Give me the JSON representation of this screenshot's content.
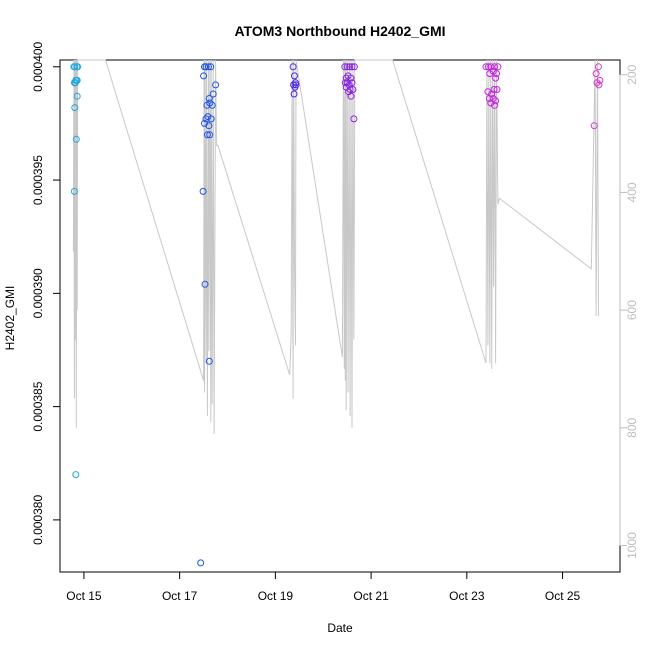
{
  "chart_data": {
    "type": "scatter",
    "title": "ATOM3 Northbound H2402_GMI",
    "xlabel": "Date",
    "ylabel": "H2402_GMI",
    "x_ticks": [
      "Oct 15",
      "Oct 17",
      "Oct 19",
      "Oct 21",
      "Oct 23",
      "Oct 25"
    ],
    "x_tick_values": [
      15,
      17,
      19,
      21,
      23,
      25
    ],
    "xlim": [
      14.5,
      26.2
    ],
    "y_ticks": [
      "0.000380",
      "0.000385",
      "0.000390",
      "0.000395",
      "0.000400"
    ],
    "y_tick_values": [
      0.00038,
      0.000385,
      0.00039,
      0.000395,
      0.0004
    ],
    "ylim": [
      0.0003777,
      0.0004003
    ],
    "y2_ticks": [
      "200",
      "400",
      "600",
      "800",
      "1000"
    ],
    "y2_tick_values": [
      200,
      400,
      600,
      800,
      1000
    ],
    "y2lim": [
      175,
      1045
    ],
    "grid": false,
    "colors": {
      "trace": "#c8c8c8",
      "cyan": "#1fa8e0",
      "blue": "#1e54e8",
      "violet": "#4a25e6",
      "purple": "#8a25e0",
      "magenta": "#c225dc",
      "pink": "#d838c4"
    },
    "series": [
      {
        "color_key": "cyan",
        "x": [
          14.79,
          14.81,
          14.85,
          14.87,
          14.8,
          14.83,
          14.86,
          14.84,
          14.82,
          14.86,
          14.81,
          14.84,
          14.8,
          14.83,
          14.85,
          14.82
        ],
        "y": [
          0.0004,
          0.0004,
          0.0004,
          0.0004,
          0.0003993,
          0.0003994,
          0.0003994,
          0.0003994,
          0.0003993,
          0.0003987,
          0.0003982,
          0.0003968,
          0.0003945,
          0.000382,
          0.0003994,
          0.0003993
        ]
      },
      {
        "color_key": "blue",
        "x": [
          17.52,
          17.55,
          17.6,
          17.65,
          17.5,
          17.62,
          17.7,
          17.75,
          17.57,
          17.63,
          17.68,
          17.52,
          17.55,
          17.59,
          17.66,
          17.61,
          17.63,
          17.58,
          17.49,
          17.53,
          17.62,
          17.44
        ],
        "y": [
          0.0004,
          0.0004,
          0.0004,
          0.0004,
          0.0003996,
          0.0003986,
          0.0003988,
          0.0003992,
          0.0003983,
          0.0003984,
          0.0003983,
          0.0003975,
          0.0003977,
          0.0003978,
          0.0003977,
          0.0003974,
          0.000397,
          0.000397,
          0.0003945,
          0.0003904,
          0.000387,
          0.0003781
        ]
      },
      {
        "color_key": "violet",
        "x": [
          19.37,
          19.4,
          19.42,
          19.38,
          19.43,
          19.41,
          19.39
        ],
        "y": [
          0.0004,
          0.0003996,
          0.0003993,
          0.0003992,
          0.0003992,
          0.0003991,
          0.0003988
        ]
      },
      {
        "color_key": "purple",
        "x": [
          20.45,
          20.5,
          20.55,
          20.6,
          20.65,
          20.48,
          20.52,
          20.58,
          20.46,
          20.5,
          20.54,
          20.6,
          20.48,
          20.56,
          20.62,
          20.53,
          20.58,
          20.64
        ],
        "y": [
          0.0004,
          0.0004,
          0.0004,
          0.0004,
          0.0004,
          0.0003995,
          0.0003996,
          0.0003995,
          0.0003993,
          0.0003993,
          0.0003992,
          0.0003993,
          0.0003991,
          0.000399,
          0.000399,
          0.0003989,
          0.0003987,
          0.0003977
        ]
      },
      {
        "color_key": "magenta",
        "x": [
          23.4,
          23.45,
          23.5,
          23.58,
          23.65,
          23.48,
          23.55,
          23.62,
          23.6,
          23.44,
          23.52,
          23.57,
          23.63,
          23.47,
          23.55,
          23.6,
          23.5,
          23.58
        ],
        "y": [
          0.0004,
          0.0004,
          0.0004,
          0.0004,
          0.0004,
          0.0003997,
          0.0003998,
          0.0003997,
          0.0003995,
          0.0003989,
          0.0003988,
          0.000399,
          0.000399,
          0.0003986,
          0.0003986,
          0.0003985,
          0.0003984,
          0.0003983
        ]
      },
      {
        "color_key": "pink",
        "x": [
          25.75,
          25.7,
          25.78,
          25.72,
          25.76,
          25.66
        ],
        "y": [
          0.0004,
          0.0003997,
          0.0003994,
          0.0003993,
          0.0003992,
          0.0003974
        ]
      }
    ],
    "trace_y2": {
      "x": [
        14.78,
        14.79,
        14.8,
        14.81,
        14.82,
        14.83,
        14.84,
        14.85,
        14.86,
        14.87,
        15.45,
        17.5,
        17.51,
        17.52,
        17.53,
        17.55,
        17.56,
        17.58,
        17.6,
        17.61,
        17.63,
        17.65,
        17.66,
        17.68,
        17.7,
        17.72,
        17.75,
        17.77,
        17.8,
        19.3,
        19.33,
        19.35,
        19.37,
        19.38,
        19.4,
        19.42,
        19.43,
        20.4,
        20.42,
        20.44,
        20.45,
        20.46,
        20.47,
        20.48,
        20.5,
        20.52,
        20.54,
        20.56,
        20.58,
        20.6,
        20.62,
        20.64,
        20.66,
        21.45,
        23.4,
        23.42,
        23.44,
        23.46,
        23.48,
        23.5,
        23.52,
        23.54,
        23.56,
        23.58,
        23.6,
        23.62,
        23.65,
        23.68,
        25.6,
        25.68,
        25.7,
        25.73,
        25.75
      ],
      "y": [
        500,
        150,
        750,
        150,
        650,
        150,
        800,
        150,
        600,
        150,
        150,
        720,
        150,
        740,
        150,
        690,
        150,
        780,
        150,
        670,
        150,
        790,
        150,
        760,
        150,
        810,
        150,
        320,
        320,
        710,
        640,
        150,
        750,
        150,
        520,
        660,
        150,
        680,
        150,
        700,
        150,
        720,
        150,
        770,
        150,
        740,
        150,
        780,
        150,
        800,
        150,
        650,
        150,
        150,
        690,
        150,
        660,
        150,
        690,
        150,
        700,
        150,
        560,
        150,
        690,
        150,
        420,
        410,
        530,
        150,
        610,
        150,
        610
      ]
    }
  }
}
